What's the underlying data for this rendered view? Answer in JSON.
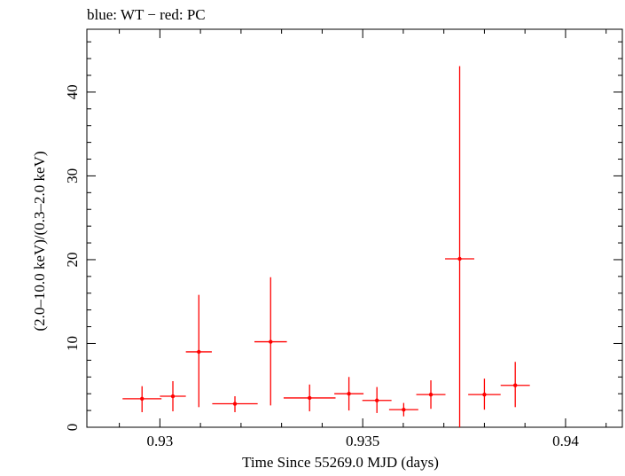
{
  "chart_data": {
    "type": "scatter",
    "title": "blue: WT − red: PC",
    "xlabel": "Time Since 55269.0 MJD (days)",
    "ylabel": "(2.0–10.0 keV)/(0.3–2.0 keV)",
    "xlim": [
      0.9282,
      0.9414
    ],
    "ylim": [
      0,
      47.5
    ],
    "x_ticks": [
      {
        "value": 0.93,
        "label": "0.93"
      },
      {
        "value": 0.935,
        "label": "0.935"
      },
      {
        "value": 0.94,
        "label": "0.94"
      }
    ],
    "y_ticks": [
      {
        "value": 0,
        "label": "0"
      },
      {
        "value": 10,
        "label": "10"
      },
      {
        "value": 20,
        "label": "20"
      },
      {
        "value": 30,
        "label": "30"
      },
      {
        "value": 40,
        "label": "40"
      }
    ],
    "series": [
      {
        "name": "PC",
        "color": "#ff0000",
        "points": [
          {
            "x": 0.92956,
            "xerr": 0.00048,
            "y": 3.4,
            "ylo": 1.8,
            "yhi": 4.9
          },
          {
            "x": 0.93032,
            "xerr": 0.00032,
            "y": 3.7,
            "ylo": 1.9,
            "yhi": 5.5
          },
          {
            "x": 0.93096,
            "xerr": 0.00032,
            "y": 9.0,
            "ylo": 2.4,
            "yhi": 15.8
          },
          {
            "x": 0.93185,
            "xerr": 0.00056,
            "y": 2.8,
            "ylo": 1.8,
            "yhi": 3.7
          },
          {
            "x": 0.93273,
            "xerr": 0.0004,
            "y": 10.2,
            "ylo": 2.6,
            "yhi": 17.9
          },
          {
            "x": 0.93369,
            "xerr": 0.00064,
            "y": 3.5,
            "ylo": 1.9,
            "yhi": 5.1
          },
          {
            "x": 0.93466,
            "xerr": 0.00036,
            "y": 4.0,
            "ylo": 2.0,
            "yhi": 6.0
          },
          {
            "x": 0.93535,
            "xerr": 0.00036,
            "y": 3.2,
            "ylo": 1.7,
            "yhi": 4.8
          },
          {
            "x": 0.93601,
            "xerr": 0.00036,
            "y": 2.1,
            "ylo": 1.3,
            "yhi": 2.9
          },
          {
            "x": 0.93668,
            "xerr": 0.00036,
            "y": 3.9,
            "ylo": 2.2,
            "yhi": 5.6
          },
          {
            "x": 0.93739,
            "xerr": 0.00036,
            "y": 20.1,
            "ylo": 0,
            "yhi": 43.1
          },
          {
            "x": 0.938,
            "xerr": 0.0004,
            "y": 3.9,
            "ylo": 2.1,
            "yhi": 5.8
          },
          {
            "x": 0.93876,
            "xerr": 0.00036,
            "y": 5.0,
            "ylo": 2.4,
            "yhi": 7.8
          }
        ]
      }
    ]
  }
}
